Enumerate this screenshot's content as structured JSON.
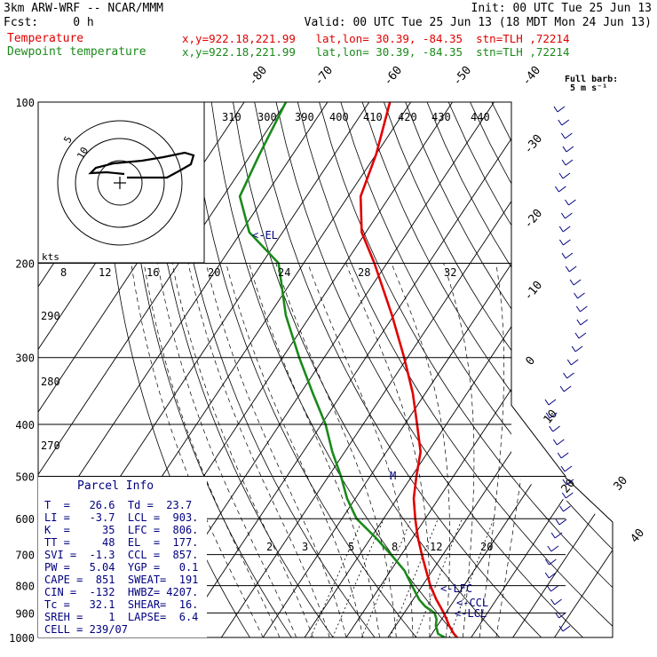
{
  "header": {
    "model": "3km ARW-WRF -- NCAR/MMM",
    "init": "Init: 00 UTC Tue 25 Jun 13",
    "fcst": "Fcst:     0 h",
    "valid": "Valid: 00 UTC Tue 25 Jun 13 (18 MDT Mon 24 Jun 13)",
    "temp_label": "Temperature",
    "temp_loc": "x,y=922.18,221.99   lat,lon= 30.39, -84.35  stn=TLH ,72214",
    "dew_label": "Dewpoint temperature",
    "dew_loc": "x,y=922.18,221.99   lat,lon= 30.39, -84.35  stn=TLH ,72214"
  },
  "barb_legend": {
    "line1": "Full barb:",
    "line2": "5 m s⁻¹"
  },
  "parcel_info": {
    "title": "Parcel Info",
    "rows": [
      "T  =   26.6  Td =  23.7",
      "LI =   -3.7  LCL =  903.",
      "K  =     35  LFC =  806.",
      "TT =     48  EL  =  177.",
      "SVI =  -1.3  CCL =  857.",
      "PW =   5.04  YGP =   0.1",
      "CAPE =  851  SWEAT=  191",
      "CIN =  -132  HWBZ= 4207.",
      "Tc =   32.1  SHEAR=  16.",
      "SREH =    1  LAPSE=  6.4",
      "CELL = 239/07"
    ]
  },
  "chart_data": {
    "type": "line",
    "subtype": "skew-T log-p diagram",
    "pressure_axis": {
      "levels": [
        100,
        200,
        300,
        400,
        500,
        600,
        700,
        800,
        900,
        1000
      ],
      "labels": [
        "100",
        "200",
        "300",
        "400",
        "500",
        "600",
        "700",
        "800",
        "900",
        "1000"
      ],
      "scale": "log",
      "ylim": [
        1000,
        100
      ]
    },
    "temperature_isotherm_labels": [
      "-80",
      "-70",
      "-60",
      "-50",
      "-40",
      "-30",
      "-20",
      "-10",
      "0",
      "10",
      "20",
      "30",
      "40"
    ],
    "theta_labels": [
      "310",
      "300",
      "390",
      "400",
      "410",
      "420",
      "430",
      "440"
    ],
    "dry_adiabat_labels": [
      "290",
      "280",
      "270"
    ],
    "mixing_ratio_labels": [
      "2",
      "3",
      "5",
      "8",
      "12",
      "20"
    ],
    "hodograph": {
      "speed_unit": "kts",
      "ring_labels": [
        "5",
        "10"
      ],
      "scale_labels": [
        "8",
        "12",
        "16",
        "20",
        "24",
        "28",
        "32"
      ]
    },
    "level_markers": [
      "EL",
      "LFC",
      "CCL",
      "LCL",
      "M"
    ],
    "series": [
      {
        "name": "Temperature",
        "color": "#e00000",
        "p": [
          1000,
          985,
          950,
          925,
          900,
          875,
          850,
          800,
          750,
          700,
          650,
          600,
          550,
          500,
          450,
          400,
          350,
          300,
          250,
          200,
          175,
          150,
          125,
          100
        ],
        "t": [
          26.6,
          25.3,
          22.8,
          21.2,
          19.5,
          17.6,
          15.6,
          11.9,
          8.5,
          4.9,
          1.2,
          -2.4,
          -6.0,
          -8.9,
          -11.8,
          -17.0,
          -23.0,
          -30.8,
          -40.5,
          -53.0,
          -61.0,
          -67.0,
          -70.0,
          -75.0
        ]
      },
      {
        "name": "Dewpoint temperature",
        "color": "#1a8a1a",
        "p": [
          1000,
          985,
          950,
          925,
          900,
          875,
          850,
          800,
          750,
          700,
          650,
          600,
          550,
          500,
          450,
          400,
          350,
          300,
          250,
          200,
          175,
          150,
          125,
          100
        ],
        "t": [
          23.7,
          21.5,
          19.6,
          18.8,
          17.3,
          14.0,
          11.5,
          7.5,
          3.3,
          -2.5,
          -9.0,
          -16.5,
          -22.0,
          -27.0,
          -33.0,
          -39.0,
          -47.0,
          -56.0,
          -66.0,
          -76.0,
          -88.0,
          -96.0,
          -98.0,
          -100.0
        ]
      }
    ]
  },
  "colors": {
    "temperature": "#e00000",
    "dewpoint": "#1a8a1a",
    "annotation": "#000080"
  }
}
